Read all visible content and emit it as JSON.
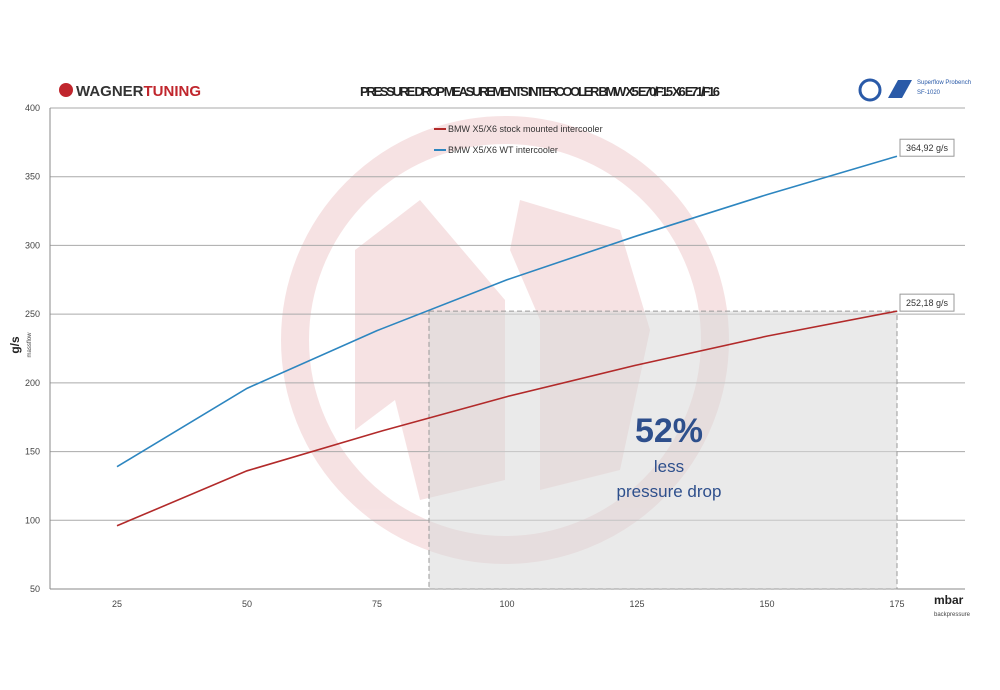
{
  "header": {
    "brand_left": "WAGNER",
    "brand_right": "TUNING",
    "logo_right_line1": "Superflow Probench",
    "logo_right_line2": "SF-1020"
  },
  "colors": {
    "stock": "#b22a2a",
    "wt": "#2d86c0",
    "callout": "#2e4f8c",
    "brand_red": "#c0262d"
  },
  "chart_data": {
    "type": "line",
    "title": "PRESSURE DROP MEASUREMENTS INTERCOOLER BMW X5 E70/F15 X6 E71/F16",
    "xlabel": "mbar",
    "xlabel_sub": "backpressure",
    "ylabel": "g/s",
    "ylabel_sub": "massflow",
    "x": [
      25,
      50,
      75,
      100,
      125,
      150,
      175
    ],
    "ylim": [
      50,
      400
    ],
    "yticks": [
      50,
      100,
      150,
      200,
      250,
      300,
      350,
      400
    ],
    "grid": true,
    "legend_placement": "top-center",
    "series": [
      {
        "name": "BMW X5/X6 stock mounted intercooler",
        "values": [
          96,
          136,
          164,
          190,
          213,
          234,
          252.18
        ],
        "end_label": "252,18 g/s"
      },
      {
        "name": "BMW X5/X6 WT intercooler",
        "values": [
          139,
          196,
          238,
          275,
          307,
          337,
          364.92
        ],
        "end_label": "364,92 g/s"
      }
    ],
    "highlight_box": {
      "x": [
        85,
        175
      ],
      "y": [
        50,
        252.18
      ]
    },
    "annotation": {
      "big": "52%",
      "line1": "less",
      "line2": "pressure drop"
    }
  }
}
